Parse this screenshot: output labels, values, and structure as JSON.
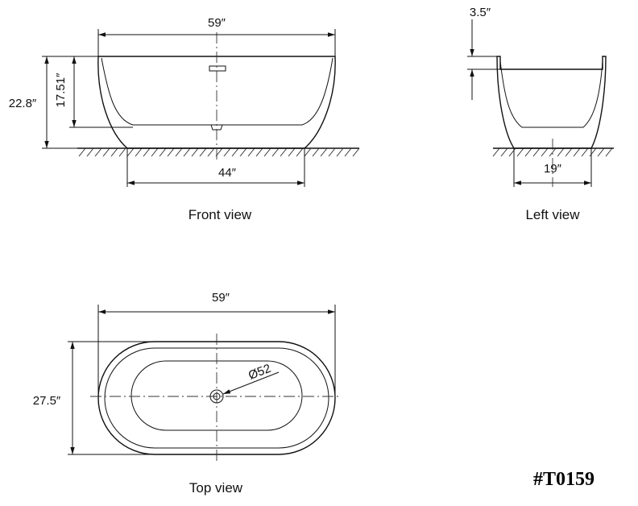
{
  "front_view": {
    "label": "Front view",
    "width_top": "59″",
    "width_base": "44″",
    "total_height": "22.8″",
    "inner_depth": "17.51″"
  },
  "left_view": {
    "label": "Left view",
    "rim_height": "3.5″",
    "base_width": "19″"
  },
  "top_view": {
    "label": "Top view",
    "length": "59″",
    "width": "27.5″",
    "drain_diameter": "Ø52"
  },
  "model_code": "#T0159"
}
